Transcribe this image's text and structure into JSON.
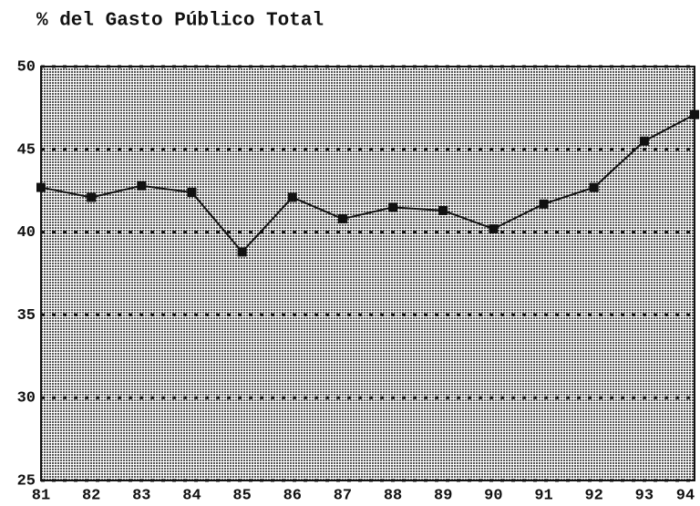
{
  "chart_data": {
    "type": "line",
    "title": "% del Gasto Público Total",
    "categories": [
      "81",
      "82",
      "83",
      "84",
      "85",
      "86",
      "87",
      "88",
      "89",
      "90",
      "91",
      "92",
      "93",
      "94"
    ],
    "values": [
      42.7,
      42.1,
      42.8,
      42.4,
      38.8,
      42.1,
      40.8,
      41.5,
      41.3,
      40.2,
      41.7,
      42.7,
      45.5,
      47.1
    ],
    "color": "#111111",
    "ylim": [
      25,
      50
    ],
    "yticks": [
      25,
      30,
      35,
      40,
      45,
      50
    ],
    "grid": true
  }
}
